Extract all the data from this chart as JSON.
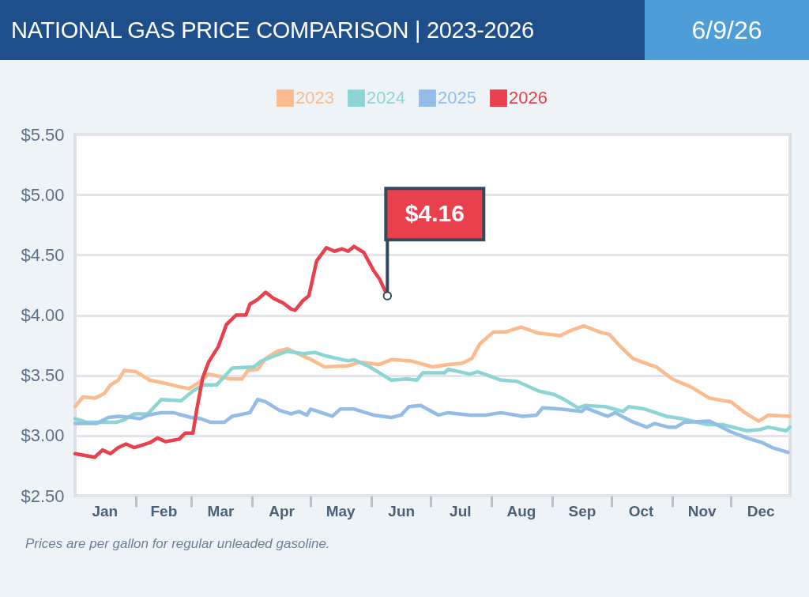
{
  "chart_data": {
    "type": "line",
    "title": "NATIONAL GAS PRICE COMPARISON | 2023-2026",
    "subtitle": "6/9/26",
    "x": [
      "--01-01",
      "--01-05",
      "--01-11",
      "--01-16",
      "--01-19",
      "--01-23",
      "--01-26",
      "--02-01",
      "--02-08",
      "--02-14",
      "--02-22",
      "--02-28",
      "--03-05",
      "--03-10",
      "--03-21",
      "--03-27",
      "--03-30",
      "--04-04",
      "--04-08",
      "--04-14",
      "--04-19",
      "--04-30",
      "--05-08",
      "--05-20",
      "--05-26",
      "--06-05",
      "--06-11",
      "--06-21",
      "--07-02",
      "--07-10",
      "--07-17",
      "--07-22",
      "--07-26",
      "--08-02",
      "--08-08",
      "--08-16",
      "--08-25",
      "--09-05",
      "--09-10",
      "--09-17",
      "--09-25",
      "--09-30",
      "--10-05",
      "--10-12",
      "--10-20",
      "--10-24",
      "--11-01",
      "--11-11",
      "--11-20",
      "--12-01",
      "--12-08",
      "--12-15",
      "--12-20",
      "--12-31"
    ],
    "series": [
      {
        "name": "2023",
        "color": "#fbbb8e",
        "values": [
          3.24,
          3.32,
          3.31,
          3.35,
          3.42,
          3.46,
          3.54,
          3.53,
          3.46,
          3.44,
          3.41,
          3.39,
          3.44,
          3.51,
          3.47,
          3.47,
          3.54,
          3.55,
          3.64,
          3.7,
          3.72,
          3.64,
          3.57,
          3.58,
          3.61,
          3.59,
          3.63,
          3.62,
          3.57,
          3.59,
          3.6,
          3.64,
          3.76,
          3.86,
          3.86,
          3.9,
          3.85,
          3.83,
          3.87,
          3.91,
          3.86,
          3.84,
          3.75,
          3.64,
          3.59,
          3.57,
          3.47,
          3.4,
          3.31,
          3.28,
          3.19,
          3.12,
          3.17,
          3.16
        ]
      },
      {
        "name": "2024",
        "color": "#8dd5d5",
        "x": [
          "--01-01",
          "--01-07",
          "--01-22",
          "--01-26",
          "--01-31",
          "--02-07",
          "--02-14",
          "--02-24",
          "--03-02",
          "--03-07",
          "--03-14",
          "--03-22",
          "--04-02",
          "--04-06",
          "--04-14",
          "--04-19",
          "--04-27",
          "--05-03",
          "--05-09",
          "--05-20",
          "--05-23",
          "--05-31",
          "--06-05",
          "--06-11",
          "--06-19",
          "--06-24",
          "--06-27",
          "--07-08",
          "--07-10",
          "--07-21",
          "--07-25",
          "--08-06",
          "--08-14",
          "--08-25",
          "--09-02",
          "--09-07",
          "--09-14",
          "--09-18",
          "--09-28",
          "--10-07",
          "--10-10",
          "--10-18",
          "--10-29",
          "--11-06",
          "--11-19",
          "--11-27",
          "--12-09",
          "--12-16",
          "--12-20",
          "--12-29",
          "--12-31"
        ],
        "values": [
          3.14,
          3.11,
          3.11,
          3.13,
          3.18,
          3.18,
          3.3,
          3.29,
          3.37,
          3.42,
          3.42,
          3.56,
          3.57,
          3.62,
          3.67,
          3.7,
          3.68,
          3.69,
          3.66,
          3.62,
          3.63,
          3.57,
          3.52,
          3.46,
          3.47,
          3.46,
          3.52,
          3.52,
          3.55,
          3.51,
          3.53,
          3.46,
          3.45,
          3.37,
          3.34,
          3.3,
          3.23,
          3.25,
          3.24,
          3.2,
          3.24,
          3.22,
          3.16,
          3.14,
          3.09,
          3.09,
          3.04,
          3.05,
          3.07,
          3.04,
          3.07
        ]
      },
      {
        "name": "2025",
        "color": "#93bde6",
        "x": [
          "--01-01",
          "--01-12",
          "--01-18",
          "--01-23",
          "--01-30",
          "--02-03",
          "--02-07",
          "--02-14",
          "--02-20",
          "--03-01",
          "--03-06",
          "--03-11",
          "--03-18",
          "--03-22",
          "--03-31",
          "--04-04",
          "--04-08",
          "--04-15",
          "--04-21",
          "--04-25",
          "--04-29",
          "--05-01",
          "--05-12",
          "--05-16",
          "--05-23",
          "--06-02",
          "--06-11",
          "--06-16",
          "--06-20",
          "--06-26",
          "--07-05",
          "--07-10",
          "--07-21",
          "--07-29",
          "--08-06",
          "--08-17",
          "--08-24",
          "--08-27",
          "--09-05",
          "--09-16",
          "--09-18",
          "--09-29",
          "--10-03",
          "--10-11",
          "--10-19",
          "--10-23",
          "--10-30",
          "--11-03",
          "--11-07",
          "--11-20",
          "--12-01",
          "--12-09",
          "--12-17",
          "--12-22",
          "--12-30"
        ],
        "values": [
          3.1,
          3.1,
          3.15,
          3.16,
          3.15,
          3.14,
          3.17,
          3.19,
          3.19,
          3.15,
          3.14,
          3.11,
          3.11,
          3.16,
          3.19,
          3.3,
          3.28,
          3.21,
          3.18,
          3.2,
          3.17,
          3.22,
          3.16,
          3.22,
          3.22,
          3.17,
          3.15,
          3.17,
          3.24,
          3.25,
          3.17,
          3.19,
          3.17,
          3.17,
          3.19,
          3.16,
          3.17,
          3.23,
          3.22,
          3.2,
          3.23,
          3.16,
          3.19,
          3.12,
          3.07,
          3.1,
          3.07,
          3.07,
          3.11,
          3.12,
          3.03,
          2.98,
          2.94,
          2.9,
          2.86
        ]
      },
      {
        "name": "2026",
        "color": "#e8404d",
        "x": [
          "--01-01",
          "--01-11",
          "--01-15",
          "--01-19",
          "--01-23",
          "--01-27",
          "--01-31",
          "--02-08",
          "--02-12",
          "--02-16",
          "--02-23",
          "--02-26",
          "--03-02",
          "--03-04",
          "--03-07",
          "--03-10",
          "--03-15",
          "--03-19",
          "--03-24",
          "--03-29",
          "--03-31",
          "--04-04",
          "--04-08",
          "--04-12",
          "--04-17",
          "--04-21",
          "--04-23",
          "--04-27",
          "--04-30",
          "--05-04",
          "--05-09",
          "--05-13",
          "--05-17",
          "--05-20",
          "--05-23",
          "--05-28",
          "--06-02",
          "--06-05",
          "--06-09"
        ],
        "values": [
          2.85,
          2.82,
          2.88,
          2.85,
          2.9,
          2.93,
          2.9,
          2.94,
          2.98,
          2.95,
          2.97,
          3.02,
          3.02,
          3.22,
          3.48,
          3.61,
          3.74,
          3.92,
          4.0,
          4.0,
          4.09,
          4.13,
          4.19,
          4.14,
          4.1,
          4.05,
          4.04,
          4.12,
          4.16,
          4.45,
          4.56,
          4.53,
          4.55,
          4.53,
          4.57,
          4.52,
          4.37,
          4.3,
          4.16
        ]
      }
    ],
    "xlim": [
      "--01-01",
      "--12-31"
    ],
    "xticks": [
      {
        "value": "--01-16",
        "label": "Jan"
      },
      {
        "value": "--02-01",
        "label": null
      },
      {
        "value": "--02-15",
        "label": "Feb"
      },
      {
        "value": "--03-01",
        "label": null
      },
      {
        "value": "--03-16",
        "label": "Mar"
      },
      {
        "value": "--04-01",
        "label": null
      },
      {
        "value": "--04-16",
        "label": "Apr"
      },
      {
        "value": "--05-01",
        "label": null
      },
      {
        "value": "--05-16",
        "label": "May"
      },
      {
        "value": "--06-01",
        "label": null
      },
      {
        "value": "--06-16",
        "label": "Jun"
      },
      {
        "value": "--07-01",
        "label": null
      },
      {
        "value": "--07-16",
        "label": "Jul"
      },
      {
        "value": "--08-01",
        "label": null
      },
      {
        "value": "--08-16",
        "label": "Aug"
      },
      {
        "value": "--09-01",
        "label": null
      },
      {
        "value": "--09-16",
        "label": "Sep"
      },
      {
        "value": "--10-01",
        "label": null
      },
      {
        "value": "--10-16",
        "label": "Oct"
      },
      {
        "value": "--11-01",
        "label": null
      },
      {
        "value": "--11-16",
        "label": "Nov"
      },
      {
        "value": "--12-01",
        "label": null
      },
      {
        "value": "--12-16",
        "label": "Dec"
      }
    ],
    "ylim": [
      2.5,
      5.5
    ],
    "yticks": [
      {
        "value": 2.5,
        "label": "$2.50"
      },
      {
        "value": 3,
        "label": "$3.00"
      },
      {
        "value": 3.5,
        "label": "$3.50"
      },
      {
        "value": 4,
        "label": "$4.00"
      },
      {
        "value": 4.5,
        "label": "$4.50"
      },
      {
        "value": 5,
        "label": "$5.00"
      },
      {
        "value": 5.5,
        "label": "$5.50"
      }
    ],
    "grid": "y",
    "legend": "top",
    "annotations": [
      {
        "text": "$4.16",
        "x": "--06-09",
        "y": 4.16
      },
      "Prices are per gallon for regular unleaded gasoline."
    ]
  }
}
